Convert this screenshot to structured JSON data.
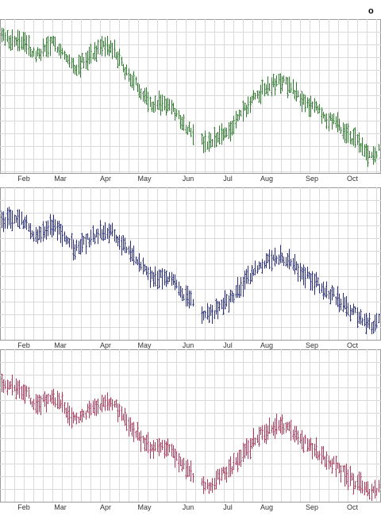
{
  "corner_label": "o",
  "chart_data": [
    {
      "type": "bar",
      "style": "ohlc",
      "title": "",
      "xlabel": "",
      "ylabel": "",
      "color": "#2e7d2e",
      "grid": true,
      "months": [
        "Feb",
        "Mar",
        "Apr",
        "May",
        "Jun",
        "Jul",
        "Aug",
        "Sep",
        "Oct"
      ],
      "ylim": [
        0,
        100
      ],
      "series": [
        {
          "values": [
            94,
            88,
            86,
            87,
            82,
            76,
            80,
            84,
            82,
            74,
            68,
            73,
            77,
            80,
            82,
            79,
            70,
            62,
            56,
            50,
            44,
            46,
            43,
            38,
            31,
            27,
            20,
            18,
            22,
            26,
            30,
            38,
            43,
            50,
            54,
            57,
            60,
            58,
            53,
            48,
            44,
            40,
            36,
            33,
            28,
            24,
            20,
            13,
            10,
            17
          ]
        }
      ]
    },
    {
      "type": "bar",
      "style": "ohlc",
      "title": "",
      "xlabel": "",
      "ylabel": "",
      "color": "#2a2f80",
      "grid": true,
      "months": [
        "Feb",
        "Mar",
        "Apr",
        "May",
        "Jun",
        "Jul",
        "Aug",
        "Sep",
        "Oct"
      ],
      "ylim": [
        0,
        100
      ],
      "series": [
        {
          "values": [
            86,
            78,
            80,
            80,
            75,
            68,
            72,
            74,
            72,
            66,
            60,
            63,
            67,
            70,
            72,
            70,
            62,
            56,
            50,
            45,
            40,
            42,
            40,
            35,
            28,
            24,
            17,
            16,
            20,
            24,
            27,
            35,
            40,
            46,
            50,
            53,
            55,
            53,
            48,
            44,
            40,
            36,
            32,
            29,
            24,
            20,
            16,
            12,
            9,
            14
          ]
        }
      ]
    },
    {
      "type": "bar",
      "style": "ohlc",
      "title": "",
      "xlabel": "",
      "ylabel": "",
      "color": "#b03a5c",
      "grid": true,
      "months": [
        "Feb",
        "Mar",
        "Apr",
        "May",
        "Jun",
        "Jul",
        "Aug",
        "Sep",
        "Oct"
      ],
      "ylim": [
        0,
        100
      ],
      "series": [
        {
          "values": [
            82,
            74,
            76,
            74,
            70,
            62,
            66,
            68,
            66,
            60,
            54,
            57,
            61,
            64,
            66,
            64,
            56,
            50,
            44,
            38,
            34,
            36,
            34,
            28,
            22,
            18,
            12,
            11,
            15,
            19,
            22,
            30,
            35,
            42,
            46,
            49,
            51,
            49,
            44,
            40,
            36,
            32,
            28,
            25,
            20,
            16,
            12,
            8,
            6,
            10
          ]
        }
      ]
    }
  ]
}
